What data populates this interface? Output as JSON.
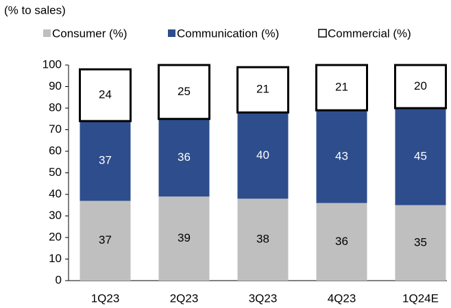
{
  "chart_data": {
    "type": "stacked_bar",
    "y_axis_label": "(% to sales)",
    "categories": [
      "1Q23",
      "2Q23",
      "3Q23",
      "4Q23",
      "1Q24E"
    ],
    "series": [
      {
        "name": "Consumer (%)",
        "color": "#bfbfbf",
        "label_color": "#000000",
        "values": [
          37,
          39,
          38,
          36,
          35
        ]
      },
      {
        "name": "Communication (%)",
        "color": "#2e4d8c",
        "label_color": "#ffffff",
        "values": [
          37,
          36,
          40,
          43,
          45
        ]
      },
      {
        "name": "Commercial (%)",
        "color": "#ffffff",
        "label_color": "#000000",
        "values": [
          24,
          25,
          21,
          21,
          20
        ]
      }
    ],
    "ylim": [
      0,
      100
    ],
    "yticks": [
      0,
      10,
      20,
      30,
      40,
      50,
      60,
      70,
      80,
      90,
      100
    ]
  }
}
